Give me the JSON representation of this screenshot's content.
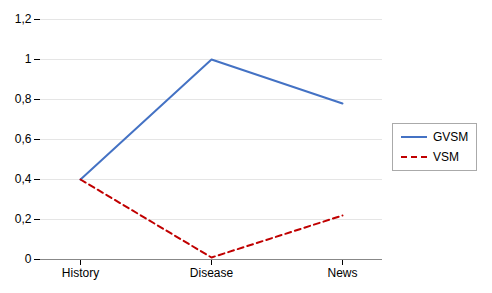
{
  "chart_data": {
    "type": "line",
    "categories": [
      "History",
      "Disease",
      "News"
    ],
    "series": [
      {
        "name": "GVSM",
        "color": "#4472C4",
        "values": [
          0.4,
          1.0,
          0.78
        ],
        "line_style": "solid"
      },
      {
        "name": "VSM",
        "color": "#C00000",
        "values": [
          0.4,
          0.01,
          0.22
        ],
        "line_style": "dashed"
      }
    ],
    "ylim": [
      0,
      1.2
    ],
    "yticks": [
      0,
      {
        "value": 0.2,
        "label": "0,2"
      },
      {
        "value": 0.4,
        "label": "0,4"
      },
      {
        "value": 0.6,
        "label": "0,6"
      },
      {
        "value": 0.8,
        "label": "0,8"
      },
      1,
      {
        "value": 1.2,
        "label": "1,2"
      }
    ],
    "grid": true,
    "legend": "right"
  }
}
